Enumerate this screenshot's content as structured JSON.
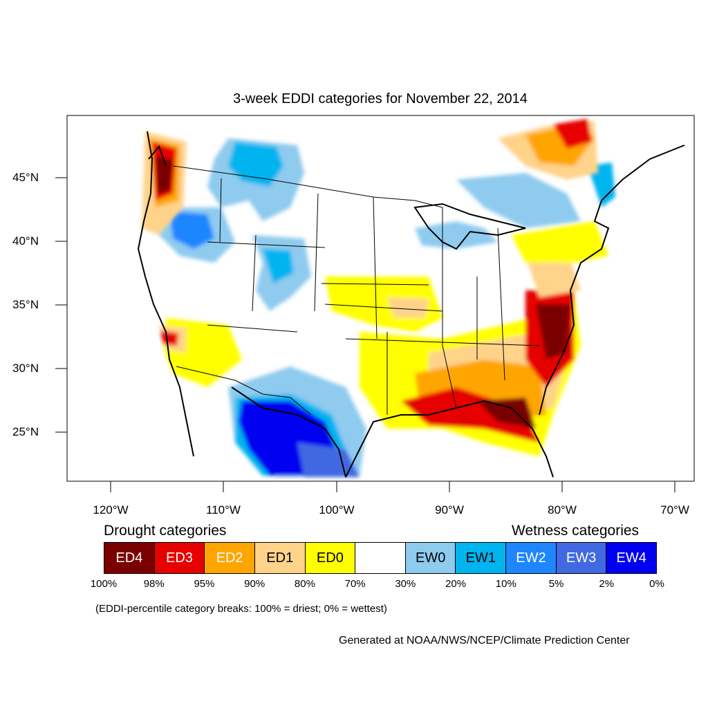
{
  "title": "3-week EDDI categories for November 22, 2014",
  "lat_labels": [
    "45°N",
    "40°N",
    "35°N",
    "30°N",
    "25°N"
  ],
  "lon_labels": [
    "120°W",
    "110°W",
    "100°W",
    "90°W",
    "80°W",
    "70°W"
  ],
  "legend": {
    "drought_heading": "Drought categories",
    "wetness_heading": "Wetness categories",
    "categories": [
      {
        "label": "ED4",
        "color": "#7a0000",
        "text_color": "#ffffff"
      },
      {
        "label": "ED3",
        "color": "#e60000",
        "text_color": "#ffffff"
      },
      {
        "label": "ED2",
        "color": "#ffa500",
        "text_color": "#ffffff"
      },
      {
        "label": "ED1",
        "color": "#ffd38a",
        "text_color": "#000000"
      },
      {
        "label": "ED0",
        "color": "#ffff00",
        "text_color": "#000000"
      },
      {
        "label": "",
        "color": "#ffffff",
        "text_color": "#000000"
      },
      {
        "label": "EW0",
        "color": "#8ecbee",
        "text_color": "#000000"
      },
      {
        "label": "EW1",
        "color": "#00b4f0",
        "text_color": "#000000"
      },
      {
        "label": "EW2",
        "color": "#1f86ff",
        "text_color": "#ffffff"
      },
      {
        "label": "EW3",
        "color": "#4169e1",
        "text_color": "#ffffff"
      },
      {
        "label": "EW4",
        "color": "#0000f0",
        "text_color": "#ffffff"
      }
    ],
    "breaks": [
      "100%",
      "98%",
      "95%",
      "90%",
      "80%",
      "70%",
      "30%",
      "20%",
      "10%",
      "5%",
      "2%",
      "0%"
    ]
  },
  "note": "(EDDI-percentile category breaks: 100% = driest; 0% = wettest)",
  "credit": "Generated at NOAA/NWS/NCEP/Climate Prediction Center"
}
